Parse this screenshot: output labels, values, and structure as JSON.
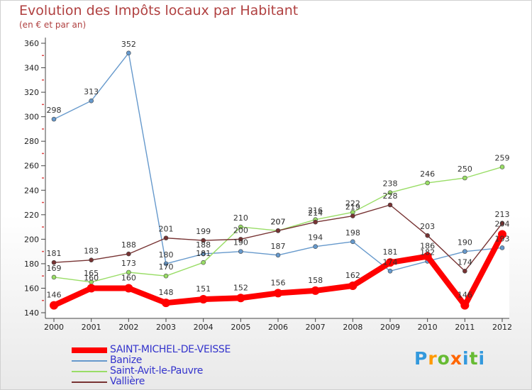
{
  "header": {
    "title": "Evolution des Impôts locaux par Habitant",
    "subtitle": "(en € et par an)"
  },
  "brand": {
    "text": "Proxiti"
  },
  "chart_data": {
    "type": "line",
    "title": "Evolution des Impôts locaux par Habitant",
    "subtitle": "(en € et par an)",
    "xlabel": "",
    "ylabel": "(en € et par an)",
    "categories": [
      "2000",
      "2001",
      "2002",
      "2003",
      "2004",
      "2005",
      "2006",
      "2007",
      "2008",
      "2009",
      "2010",
      "2011",
      "2012"
    ],
    "ylim": [
      140,
      360
    ],
    "yticks": [
      140,
      160,
      180,
      200,
      220,
      240,
      260,
      280,
      300,
      320,
      340,
      360
    ],
    "grid": false,
    "legend_position": "bottom-left",
    "series": [
      {
        "name": "SAINT-MICHEL-DE-VEISSE",
        "color": "#ff0000",
        "values": [
          146,
          160,
          160,
          148,
          151,
          152,
          156,
          158,
          162,
          181,
          186,
          146,
          204
        ],
        "labels": [
          "146",
          "160",
          "160",
          "148",
          "151",
          "152",
          "156",
          "158",
          "162",
          "181",
          "186",
          "146",
          "204"
        ]
      },
      {
        "name": "Banize",
        "color": "#6699cc",
        "values": [
          298,
          313,
          352,
          180,
          188,
          190,
          187,
          194,
          198,
          174,
          182,
          190,
          193
        ],
        "labels": [
          "298",
          "313",
          "352",
          "180",
          "188",
          "190",
          "187",
          "194",
          "198",
          "174",
          "182",
          "190",
          "193"
        ]
      },
      {
        "name": "Saint-Avit-le-Pauvre",
        "color": "#99dd66",
        "values": [
          169,
          165,
          173,
          170,
          181,
          210,
          207,
          216,
          222,
          238,
          246,
          250,
          259
        ],
        "labels": [
          "169",
          "165",
          "173",
          "170",
          "181",
          "210",
          "207",
          "216",
          "222",
          "238",
          "246",
          "250",
          "259"
        ]
      },
      {
        "name": "Vallière",
        "color": "#773333",
        "values": [
          181,
          183,
          188,
          201,
          199,
          200,
          207,
          214,
          219,
          228,
          203,
          174,
          213
        ],
        "labels": [
          "181",
          "183",
          "188",
          "201",
          "199",
          "200",
          "207",
          "214",
          "219",
          "228",
          "203",
          "174",
          "213"
        ]
      }
    ]
  }
}
